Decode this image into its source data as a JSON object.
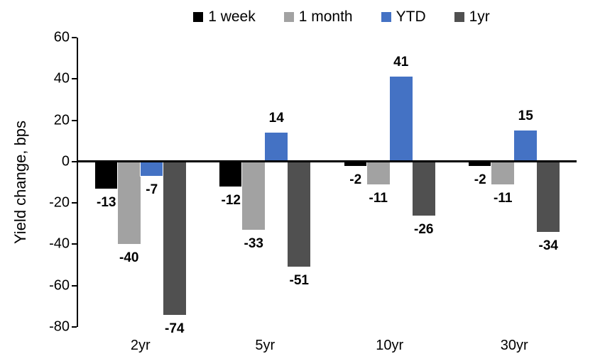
{
  "chart_data": {
    "type": "bar",
    "title": "",
    "ylabel": "Yield change, bps",
    "xlabel": "",
    "categories": [
      "2yr",
      "5yr",
      "10yr",
      "30yr"
    ],
    "series": [
      {
        "name": "1 week",
        "color": "#000000",
        "values": [
          -13,
          -12,
          -2,
          -2
        ]
      },
      {
        "name": "1 month",
        "color": "#A2A2A2",
        "values": [
          -40,
          -33,
          -11,
          -11
        ]
      },
      {
        "name": "YTD",
        "color": "#4472C4",
        "values": [
          -7,
          14,
          41,
          15
        ]
      },
      {
        "name": "1yr",
        "color": "#505050",
        "values": [
          -74,
          -51,
          -26,
          -34
        ]
      }
    ],
    "ylim": [
      -80,
      60
    ],
    "ytick_step": 20,
    "grid": false,
    "legend_position": "top",
    "data_labels": true
  }
}
